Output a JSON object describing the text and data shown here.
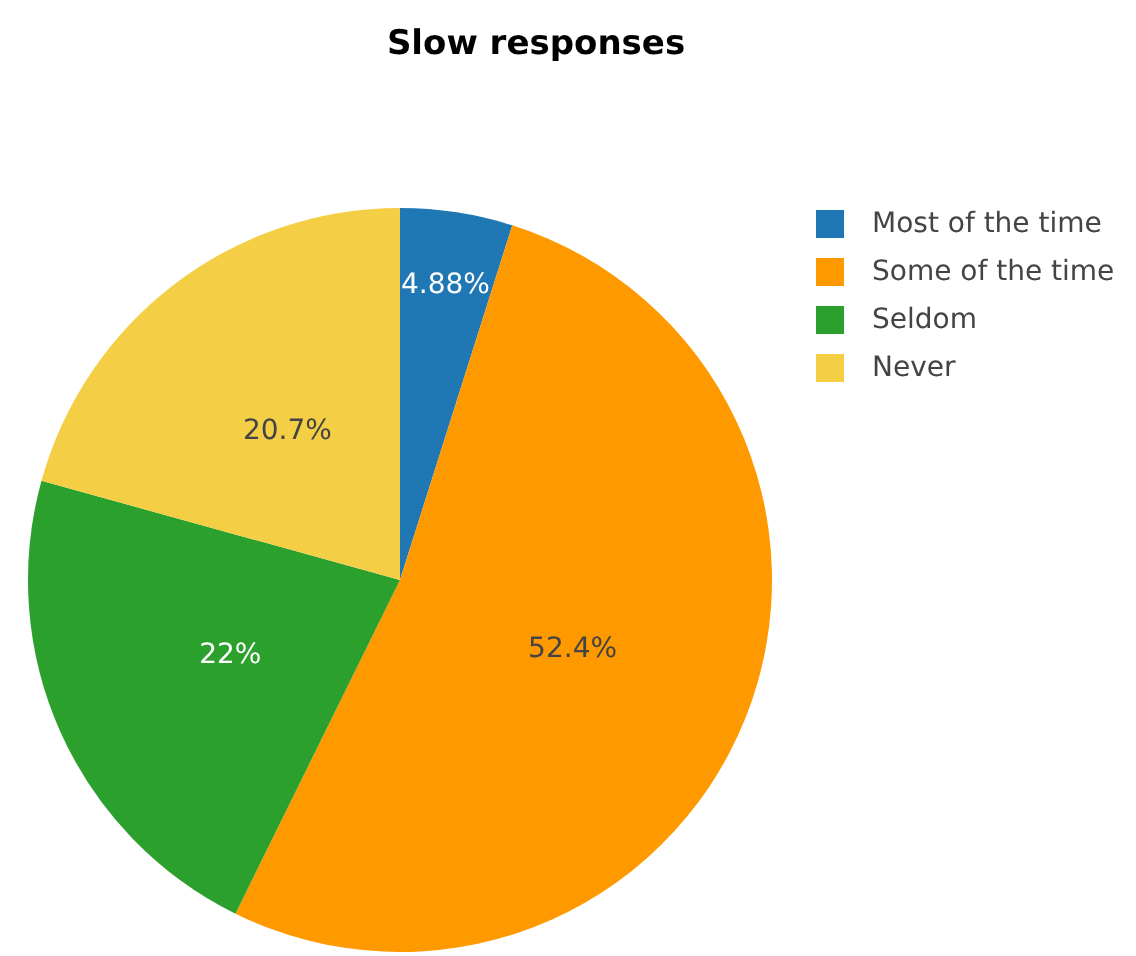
{
  "chart_data": {
    "type": "pie",
    "title": "Slow responses",
    "categories": [
      "Most of the time",
      "Some of the time",
      "Seldom",
      "Never"
    ],
    "values": [
      4.88,
      52.4,
      22,
      20.7
    ],
    "colors": [
      "#1f77b4",
      "#ff9900",
      "#2ca02c",
      "#f4cf45"
    ],
    "value_labels": [
      "4.88%",
      "52.4%",
      "22%",
      "20.7%"
    ],
    "legend": "top right"
  }
}
